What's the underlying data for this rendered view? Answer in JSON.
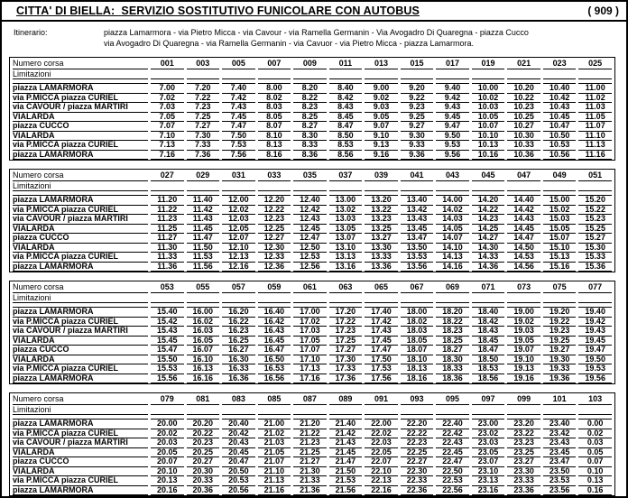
{
  "header": {
    "title": "CITTA' DI BIELLA:  SERVIZIO SOSTITUTIVO FUNICOLARE CON AUTOBUS",
    "route_number": "( 909 )"
  },
  "itinerary": {
    "label": "Itinerario:",
    "line1": "piazza Lamarmora - via Pietro Micca - via Cavour - via Ramella Germanin - Via Avogadro Di Quaregna - piazza Cucco",
    "line2": "via Avogadro Di Quaregna - via Ramella Germanin - via Cavuor - via Pietro Micca - piazza Lamarmora."
  },
  "table_labels": {
    "trip_header": "Numero corsa",
    "limitations": "Limitazioni"
  },
  "blocks": [
    {
      "trip_numbers": [
        "001",
        "003",
        "005",
        "007",
        "009",
        "011",
        "013",
        "015",
        "017",
        "019",
        "021",
        "023",
        "025"
      ],
      "rows": [
        {
          "stop": "piazza LAMARMORA",
          "times": [
            "7.00",
            "7.20",
            "7.40",
            "8.00",
            "8.20",
            "8.40",
            "9.00",
            "9.20",
            "9.40",
            "10.00",
            "10.20",
            "10.40",
            "11.00"
          ]
        },
        {
          "stop": "via P.MICCA piazza CURIEL",
          "times": [
            "7.02",
            "7.22",
            "7.42",
            "8.02",
            "8.22",
            "8.42",
            "9.02",
            "9.22",
            "9.42",
            "10.02",
            "10.22",
            "10.42",
            "11.02"
          ]
        },
        {
          "stop": "via CAVOUR / piazza MARTIRI",
          "times": [
            "7.03",
            "7.23",
            "7.43",
            "8.03",
            "8.23",
            "8.43",
            "9.03",
            "9.23",
            "9.43",
            "10.03",
            "10.23",
            "10.43",
            "11.03"
          ]
        },
        {
          "stop": "VIALARDA",
          "times": [
            "7.05",
            "7.25",
            "7.45",
            "8.05",
            "8.25",
            "8.45",
            "9.05",
            "9.25",
            "9.45",
            "10.05",
            "10.25",
            "10.45",
            "11.05"
          ]
        },
        {
          "stop": "piazza CUCCO",
          "times": [
            "7.07",
            "7.27",
            "7.47",
            "8.07",
            "8.27",
            "8.47",
            "9.07",
            "9.27",
            "9.47",
            "10.07",
            "10.27",
            "10.47",
            "11.07"
          ]
        },
        {
          "stop": "VIALARDA",
          "times": [
            "7.10",
            "7.30",
            "7.50",
            "8.10",
            "8.30",
            "8.50",
            "9.10",
            "9.30",
            "9.50",
            "10.10",
            "10.30",
            "10.50",
            "11.10"
          ]
        },
        {
          "stop": "via P.MICCA piazza CURIEL",
          "times": [
            "7.13",
            "7.33",
            "7.53",
            "8.13",
            "8.33",
            "8.53",
            "9.13",
            "9.33",
            "9.53",
            "10.13",
            "10.33",
            "10.53",
            "11.13"
          ]
        },
        {
          "stop": "piazza LAMARMORA",
          "times": [
            "7.16",
            "7.36",
            "7.56",
            "8.16",
            "8.36",
            "8.56",
            "9.16",
            "9.36",
            "9.56",
            "10.16",
            "10.36",
            "10.56",
            "11.16"
          ]
        }
      ]
    },
    {
      "trip_numbers": [
        "027",
        "029",
        "031",
        "033",
        "035",
        "037",
        "039",
        "041",
        "043",
        "045",
        "047",
        "049",
        "051"
      ],
      "rows": [
        {
          "stop": "piazza LAMARMORA",
          "times": [
            "11.20",
            "11.40",
            "12.00",
            "12.20",
            "12.40",
            "13.00",
            "13.20",
            "13.40",
            "14.00",
            "14.20",
            "14.40",
            "15.00",
            "15.20"
          ]
        },
        {
          "stop": "via P.MICCA piazza CURIEL",
          "times": [
            "11.22",
            "11.42",
            "12.02",
            "12.22",
            "12.42",
            "13.02",
            "13.22",
            "13.42",
            "14.02",
            "14.22",
            "14.42",
            "15.02",
            "15.22"
          ]
        },
        {
          "stop": "via CAVOUR / piazza MARTIRI",
          "times": [
            "11.23",
            "11.43",
            "12.03",
            "12.23",
            "12.43",
            "13.03",
            "13.23",
            "13.43",
            "14.03",
            "14.23",
            "14.43",
            "15.03",
            "15.23"
          ]
        },
        {
          "stop": "VIALARDA",
          "times": [
            "11.25",
            "11.45",
            "12.05",
            "12.25",
            "12.45",
            "13.05",
            "13.25",
            "13.45",
            "14.05",
            "14.25",
            "14.45",
            "15.05",
            "15.25"
          ]
        },
        {
          "stop": "piazza CUCCO",
          "times": [
            "11.27",
            "11.47",
            "12.07",
            "12.27",
            "12.47",
            "13.07",
            "13.27",
            "13.47",
            "14.07",
            "14.27",
            "14.47",
            "15.07",
            "15.27"
          ]
        },
        {
          "stop": "VIALARDA",
          "times": [
            "11.30",
            "11.50",
            "12.10",
            "12.30",
            "12.50",
            "13.10",
            "13.30",
            "13.50",
            "14.10",
            "14.30",
            "14.50",
            "15.10",
            "15.30"
          ]
        },
        {
          "stop": "via P.MICCA piazza CURIEL",
          "times": [
            "11.33",
            "11.53",
            "12.13",
            "12.33",
            "12.53",
            "13.13",
            "13.33",
            "13.53",
            "14.13",
            "14.33",
            "14.53",
            "15.13",
            "15.33"
          ]
        },
        {
          "stop": "piazza LAMARMORA",
          "times": [
            "11.36",
            "11.56",
            "12.16",
            "12.36",
            "12.56",
            "13.16",
            "13.36",
            "13.56",
            "14.16",
            "14.36",
            "14.56",
            "15.16",
            "15.36"
          ]
        }
      ]
    },
    {
      "trip_numbers": [
        "053",
        "055",
        "057",
        "059",
        "061",
        "063",
        "065",
        "067",
        "069",
        "071",
        "073",
        "075",
        "077"
      ],
      "rows": [
        {
          "stop": "piazza LAMARMORA",
          "times": [
            "15.40",
            "16.00",
            "16.20",
            "16.40",
            "17.00",
            "17.20",
            "17.40",
            "18.00",
            "18.20",
            "18.40",
            "19.00",
            "19.20",
            "19.40"
          ]
        },
        {
          "stop": "via P.MICCA piazza CURIEL",
          "times": [
            "15.42",
            "16.02",
            "16.22",
            "16.42",
            "17.02",
            "17.22",
            "17.42",
            "18.02",
            "18.22",
            "18.42",
            "19.02",
            "19.22",
            "19.42"
          ]
        },
        {
          "stop": "via CAVOUR / piazza MARTIRI",
          "times": [
            "15.43",
            "16.03",
            "16.23",
            "16.43",
            "17.03",
            "17.23",
            "17.43",
            "18.03",
            "18.23",
            "18.43",
            "19.03",
            "19.23",
            "19.43"
          ]
        },
        {
          "stop": "VIALARDA",
          "times": [
            "15.45",
            "16.05",
            "16.25",
            "16.45",
            "17.05",
            "17.25",
            "17.45",
            "18.05",
            "18.25",
            "18.45",
            "19.05",
            "19.25",
            "19.45"
          ]
        },
        {
          "stop": "piazza CUCCO",
          "times": [
            "15.47",
            "16.07",
            "16.27",
            "16.47",
            "17.07",
            "17.27",
            "17.47",
            "18.07",
            "18.27",
            "18.47",
            "19.07",
            "19.27",
            "19.47"
          ]
        },
        {
          "stop": "VIALARDA",
          "times": [
            "15.50",
            "16.10",
            "16.30",
            "16.50",
            "17.10",
            "17.30",
            "17.50",
            "18.10",
            "18.30",
            "18.50",
            "19.10",
            "19.30",
            "19.50"
          ]
        },
        {
          "stop": "via P.MICCA piazza CURIEL",
          "times": [
            "15.53",
            "16.13",
            "16.33",
            "16.53",
            "17.13",
            "17.33",
            "17.53",
            "18.13",
            "18.33",
            "18.53",
            "19.13",
            "19.33",
            "19.53"
          ]
        },
        {
          "stop": "piazza LAMARMORA",
          "times": [
            "15.56",
            "16.16",
            "16.36",
            "16.56",
            "17.16",
            "17.36",
            "17.56",
            "18.16",
            "18.36",
            "18.56",
            "19.16",
            "19.36",
            "19.56"
          ]
        }
      ]
    },
    {
      "trip_numbers": [
        "079",
        "081",
        "083",
        "085",
        "087",
        "089",
        "091",
        "093",
        "095",
        "097",
        "099",
        "101",
        "103"
      ],
      "rows": [
        {
          "stop": "piazza LAMARMORA",
          "times": [
            "20.00",
            "20.20",
            "20.40",
            "21.00",
            "21.20",
            "21.40",
            "22.00",
            "22.20",
            "22.40",
            "23.00",
            "23.20",
            "23.40",
            "0.00"
          ]
        },
        {
          "stop": "via P.MICCA piazza CURIEL",
          "times": [
            "20.02",
            "20.22",
            "20.42",
            "21.02",
            "21.22",
            "21.42",
            "22.02",
            "22.22",
            "22.42",
            "23.02",
            "23.22",
            "23.42",
            "0.02"
          ]
        },
        {
          "stop": "via CAVOUR / piazza MARTIRI",
          "times": [
            "20.03",
            "20.23",
            "20.43",
            "21.03",
            "21.23",
            "21.43",
            "22.03",
            "22.23",
            "22.43",
            "23.03",
            "23.23",
            "23.43",
            "0.03"
          ]
        },
        {
          "stop": "VIALARDA",
          "times": [
            "20.05",
            "20.25",
            "20.45",
            "21.05",
            "21.25",
            "21.45",
            "22.05",
            "22.25",
            "22.45",
            "23.05",
            "23.25",
            "23.45",
            "0.05"
          ]
        },
        {
          "stop": "piazza CUCCO",
          "times": [
            "20.07",
            "20.27",
            "20.47",
            "21.07",
            "21.27",
            "21.47",
            "22.07",
            "22.27",
            "22.47",
            "23.07",
            "23.27",
            "23.47",
            "0.07"
          ]
        },
        {
          "stop": "VIALARDA",
          "times": [
            "20.10",
            "20.30",
            "20.50",
            "21.10",
            "21.30",
            "21.50",
            "22.10",
            "22.30",
            "22.50",
            "23.10",
            "23.30",
            "23.50",
            "0.10"
          ]
        },
        {
          "stop": "via P.MICCA piazza CURIEL",
          "times": [
            "20.13",
            "20.33",
            "20.53",
            "21.13",
            "21.33",
            "21.53",
            "22.13",
            "22.33",
            "22.53",
            "23.13",
            "23.33",
            "23.53",
            "0.13"
          ]
        },
        {
          "stop": "piazza LAMARMORA",
          "times": [
            "20.16",
            "20.36",
            "20.56",
            "21.16",
            "21.36",
            "21.56",
            "22.16",
            "22.36",
            "22.56",
            "23.16",
            "23.36",
            "23.56",
            "0.16"
          ]
        }
      ]
    }
  ]
}
